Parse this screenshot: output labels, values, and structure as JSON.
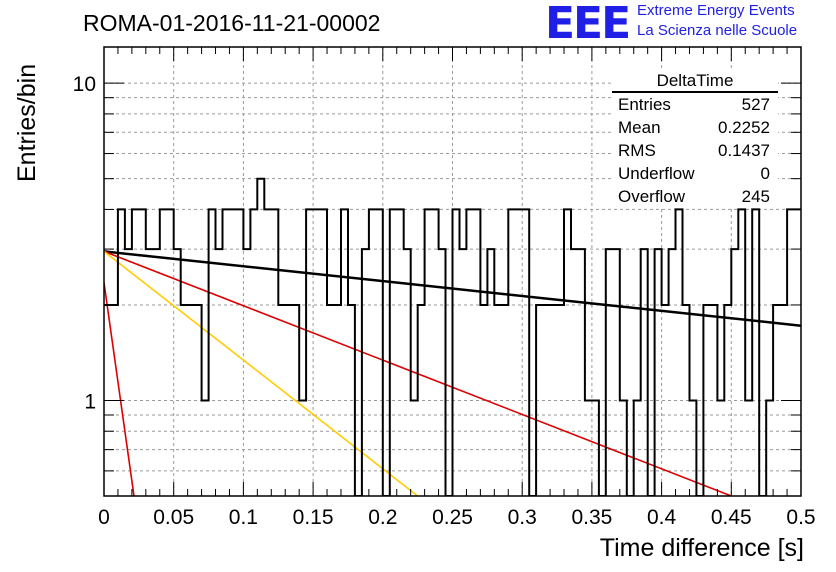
{
  "header": {
    "title": "ROMA-01-2016-11-21-00002",
    "logo": "EEE",
    "tagline1": "Extreme Energy Events",
    "tagline2": "La Scienza nelle Scuole"
  },
  "stats": {
    "title": "DeltaTime",
    "rows": [
      {
        "label": "Entries",
        "value": "527"
      },
      {
        "label": "Mean",
        "value": "0.2252"
      },
      {
        "label": "RMS",
        "value": "0.1437"
      },
      {
        "label": "Underflow",
        "value": "0"
      },
      {
        "label": "Overflow",
        "value": "245"
      }
    ]
  },
  "colors": {
    "histogram": "#000000",
    "fit_black": "#000000",
    "fit_red": "#dd0000",
    "fit_orange": "#ffcc00",
    "grid": "#9a9a9a"
  },
  "chart_data": {
    "type": "line",
    "xlabel": "Time difference [s]",
    "ylabel": "Entries/bin",
    "xlim": [
      0,
      0.5
    ],
    "ylim": [
      0.5,
      13
    ],
    "yscale": "log",
    "grid": true,
    "x_ticks": [
      "0",
      "0.05",
      "0.1",
      "0.15",
      "0.2",
      "0.25",
      "0.3",
      "0.35",
      "0.4",
      "0.45",
      "0.5"
    ],
    "y_ticks": [
      "1",
      "10"
    ],
    "histogram": {
      "bin_width": 0.005,
      "counts": [
        2,
        2,
        4,
        3,
        4,
        4,
        3,
        3,
        4,
        4,
        3,
        2,
        2,
        2,
        1,
        4,
        3,
        4,
        4,
        4,
        3,
        4,
        5,
        4,
        4,
        2,
        2,
        2,
        1,
        4,
        4,
        4,
        2,
        2,
        4,
        2,
        0,
        3,
        4,
        4,
        0,
        4,
        4,
        3,
        1,
        2,
        4,
        4,
        3,
        0,
        4,
        3,
        4,
        4,
        2,
        3,
        2,
        2,
        4,
        4,
        4,
        0,
        2,
        2,
        2,
        2,
        4,
        3,
        3,
        1,
        1,
        0,
        3,
        3,
        1,
        0,
        1,
        3,
        0,
        3,
        2,
        3,
        4,
        2,
        1,
        0,
        2,
        2,
        1,
        2,
        3,
        4,
        1,
        4,
        0,
        1,
        2,
        2,
        4,
        4
      ]
    },
    "series": [
      {
        "points": [
          [
            0.0,
            2.95
          ],
          [
            0.5,
            1.72
          ]
        ]
      },
      {
        "points": [
          [
            0.0,
            2.95
          ],
          [
            0.45,
            0.5
          ]
        ]
      },
      {
        "points": [
          [
            0.0,
            2.95
          ],
          [
            0.225,
            0.5
          ]
        ]
      },
      {
        "points": [
          [
            0.0,
            2.35
          ],
          [
            0.0215,
            0.5
          ]
        ]
      }
    ]
  }
}
